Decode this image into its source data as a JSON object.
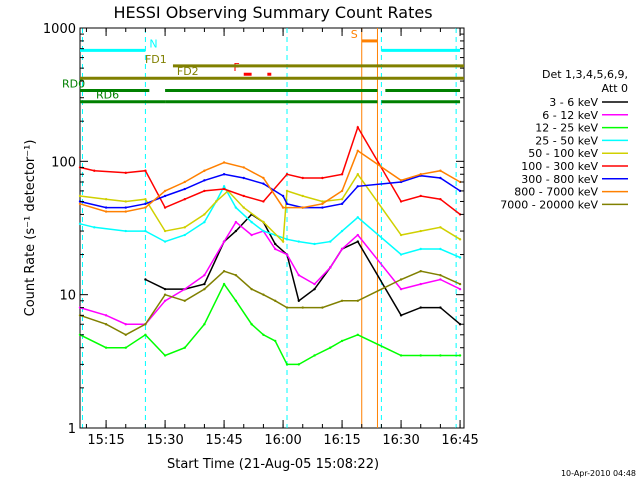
{
  "chart_data": {
    "type": "line",
    "title": "HESSI Observing Summary Count Rates",
    "xlabel": "Start Time (21-Aug-05 15:08:22)",
    "ylabel": "Count Rate (s⁻¹ detector⁻¹)",
    "ylog": true,
    "ylim": [
      1,
      1000
    ],
    "xlim": [
      "15:08:22",
      "16:46"
    ],
    "y_ticks": [
      {
        "value": 1,
        "label": "1"
      },
      {
        "value": 10,
        "label": "10"
      },
      {
        "value": 100,
        "label": "100"
      },
      {
        "value": 1000,
        "label": "1000"
      }
    ],
    "x_ticks": [
      "15:15",
      "15:30",
      "15:45",
      "16:00",
      "16:15",
      "16:30",
      "16:45"
    ],
    "legend_header": [
      "Det 1,3,4,5,6,9,",
      "Att 0"
    ],
    "legend_placement": "right",
    "series": [
      {
        "name": "3 - 6 keV",
        "color": "#000000",
        "x": [
          "15:25",
          "15:30",
          "15:35",
          "15:40",
          "15:45",
          "15:48",
          "15:52",
          "15:55",
          "15:58",
          "16:01",
          "16:04",
          "16:08",
          "16:12",
          "16:15",
          "16:19",
          "16:30",
          "16:35",
          "16:40",
          "16:45"
        ],
        "values": [
          13,
          11,
          11,
          12,
          25,
          30,
          40,
          35,
          24,
          20,
          9,
          11,
          16,
          22,
          25,
          7,
          8,
          8,
          6
        ]
      },
      {
        "name": "6 - 12 keV",
        "color": "#ff00ff",
        "x": [
          "15:08:22",
          "15:15",
          "15:20",
          "15:25",
          "15:30",
          "15:35",
          "15:40",
          "15:45",
          "15:48",
          "15:52",
          "15:55",
          "15:58",
          "16:01",
          "16:04",
          "16:08",
          "16:12",
          "16:15",
          "16:19",
          "16:30",
          "16:35",
          "16:40",
          "16:45"
        ],
        "values": [
          8,
          7,
          6,
          6,
          9,
          11,
          14,
          25,
          35,
          28,
          30,
          22,
          20,
          14,
          12,
          16,
          22,
          28,
          11,
          12,
          13,
          11
        ]
      },
      {
        "name": "12 - 25 keV",
        "color": "#00ff00",
        "x": [
          "15:08:22",
          "15:15",
          "15:20",
          "15:25",
          "15:30",
          "15:35",
          "15:40",
          "15:45",
          "15:48",
          "15:52",
          "15:55",
          "15:58",
          "16:01",
          "16:04",
          "16:08",
          "16:12",
          "16:15",
          "16:19",
          "16:30",
          "16:35",
          "16:40",
          "16:45"
        ],
        "values": [
          5,
          4,
          4,
          5,
          3.5,
          4,
          6,
          12,
          9,
          6,
          5,
          4.5,
          3,
          3,
          3.5,
          4,
          4.5,
          5,
          3.5,
          3.5,
          3.5,
          3.5
        ]
      },
      {
        "name": "25 - 50 keV",
        "color": "#00ffff",
        "x": [
          "15:08:22",
          "15:12",
          "15:20",
          "15:25",
          "15:30",
          "15:35",
          "15:40",
          "15:43",
          "15:45",
          "15:48",
          "15:52",
          "15:55",
          "15:58",
          "16:01",
          "16:04",
          "16:08",
          "16:12",
          "16:15",
          "16:19",
          "16:30",
          "16:35",
          "16:40",
          "16:45"
        ],
        "values": [
          34,
          32,
          30,
          30,
          25,
          28,
          35,
          50,
          65,
          45,
          35,
          30,
          28,
          26,
          25,
          24,
          25,
          30,
          38,
          20,
          22,
          22,
          19
        ]
      },
      {
        "name": "50 - 100 keV",
        "color": "#d0d000",
        "x": [
          "15:08:22",
          "15:15",
          "15:20",
          "15:25",
          "15:30",
          "15:35",
          "15:40",
          "15:43",
          "15:46",
          "15:50",
          "15:55",
          "16:00",
          "16:01",
          "16:05",
          "16:10",
          "16:15",
          "16:19",
          "16:30",
          "16:35",
          "16:40",
          "16:45"
        ],
        "values": [
          55,
          52,
          50,
          52,
          30,
          32,
          40,
          50,
          60,
          45,
          35,
          25,
          60,
          55,
          50,
          52,
          80,
          28,
          30,
          32,
          26
        ]
      },
      {
        "name": "100 - 300 keV",
        "color": "#ff0000",
        "x": [
          "15:08:22",
          "15:12",
          "15:20",
          "15:25",
          "15:30",
          "15:35",
          "15:40",
          "15:45",
          "15:50",
          "15:55",
          "16:01",
          "16:05",
          "16:10",
          "16:15",
          "16:19",
          "16:30",
          "16:35",
          "16:40",
          "16:45"
        ],
        "values": [
          90,
          85,
          82,
          85,
          45,
          52,
          60,
          62,
          55,
          50,
          80,
          75,
          75,
          80,
          180,
          50,
          55,
          52,
          40
        ]
      },
      {
        "name": "300 - 800 keV",
        "color": "#0000ff",
        "x": [
          "15:08:22",
          "15:15",
          "15:20",
          "15:25",
          "15:30",
          "15:35",
          "15:40",
          "15:45",
          "15:50",
          "15:55",
          "16:00",
          "16:01",
          "16:05",
          "16:10",
          "16:15",
          "16:19",
          "16:30",
          "16:35",
          "16:40",
          "16:45"
        ],
        "values": [
          50,
          45,
          45,
          48,
          55,
          62,
          72,
          80,
          75,
          68,
          55,
          48,
          45,
          45,
          48,
          65,
          70,
          78,
          75,
          60
        ]
      },
      {
        "name": "800 - 7000 keV",
        "color": "#ff8000",
        "x": [
          "15:08:22",
          "15:15",
          "15:20",
          "15:25",
          "15:30",
          "15:35",
          "15:40",
          "15:45",
          "15:50",
          "15:55",
          "16:00",
          "16:05",
          "16:10",
          "16:15",
          "16:19",
          "16:30",
          "16:35",
          "16:40",
          "16:45"
        ],
        "values": [
          48,
          42,
          42,
          45,
          60,
          70,
          85,
          98,
          90,
          75,
          45,
          45,
          48,
          60,
          120,
          72,
          80,
          85,
          70
        ]
      },
      {
        "name": "7000 - 20000 keV",
        "color": "#808000",
        "x": [
          "15:08:22",
          "15:15",
          "15:20",
          "15:25",
          "15:30",
          "15:35",
          "15:40",
          "15:45",
          "15:48",
          "15:52",
          "15:55",
          "15:58",
          "16:01",
          "16:05",
          "16:10",
          "16:15",
          "16:19",
          "16:30",
          "16:35",
          "16:40",
          "16:45"
        ],
        "values": [
          7,
          6,
          5,
          6,
          10,
          9,
          11,
          15,
          14,
          11,
          10,
          9,
          8,
          8,
          8,
          9,
          9,
          13,
          15,
          14,
          12
        ]
      }
    ],
    "annotations": {
      "intervals": [
        {
          "label": "N",
          "color": "#00ffff",
          "y": 680,
          "segments": [
            [
              "15:08:22",
              "15:25"
            ],
            [
              "16:25",
              "16:45"
            ]
          ]
        },
        {
          "label": "S",
          "color": "#ff8000",
          "y": 800,
          "segments": [
            [
              "16:20",
              "16:24"
            ]
          ]
        },
        {
          "label": "F",
          "color": "#ff0000",
          "y": 450,
          "segments": [
            [
              "15:50",
              "15:52"
            ],
            [
              "15:56",
              "15:57"
            ]
          ]
        },
        {
          "label": "FD1",
          "color": "#808000",
          "y": 520,
          "segments": [
            [
              "15:32",
              "16:46"
            ]
          ]
        },
        {
          "label": "FD2",
          "color": "#808000",
          "y": 420,
          "segments": [
            [
              "15:08:22",
              "16:46"
            ]
          ]
        },
        {
          "label": "RD0",
          "color": "#008000",
          "y": 340,
          "segments": [
            [
              "15:08:22",
              "15:26"
            ],
            [
              "15:30",
              "16:01"
            ],
            [
              "16:01",
              "16:24"
            ],
            [
              "16:26",
              "16:45"
            ]
          ]
        },
        {
          "label": "RD6",
          "color": "#008000",
          "y": 280,
          "segments": [
            [
              "15:08:22",
              "15:30"
            ],
            [
              "15:30",
              "16:24"
            ],
            [
              "16:25",
              "16:45"
            ]
          ]
        }
      ],
      "vlines": [
        {
          "x": "15:09",
          "color": "#00ffff",
          "style": "dashed"
        },
        {
          "x": "15:25",
          "color": "#00ffff",
          "style": "dashed"
        },
        {
          "x": "16:01",
          "color": "#00ffff",
          "style": "dashed"
        },
        {
          "x": "16:25",
          "color": "#00ffff",
          "style": "dashed"
        },
        {
          "x": "16:44",
          "color": "#00ffff",
          "style": "dashed"
        },
        {
          "x": "16:20",
          "color": "#ff8000",
          "style": "solid"
        },
        {
          "x": "16:24",
          "color": "#ff8000",
          "style": "solid"
        }
      ]
    }
  },
  "footer_date": "10-Apr-2010 04:48"
}
